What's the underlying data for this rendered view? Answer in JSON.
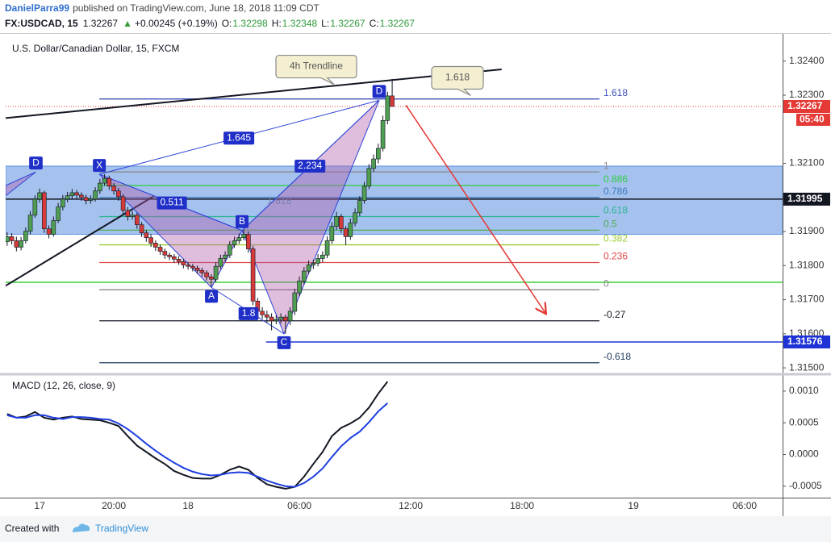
{
  "header": {
    "author": "DanielParra99",
    "published": "published on TradingView.com, June 18, 2018 11:09 CDT"
  },
  "quote": {
    "symbol": "FX:USDCAD, 15",
    "last": "1.32267",
    "change": "+0.00245 (+0.19%)",
    "fields": [
      {
        "label": "O:",
        "value": "1.32298"
      },
      {
        "label": "H:",
        "value": "1.32348"
      },
      {
        "label": "L:",
        "value": "1.32267"
      },
      {
        "label": "C:",
        "value": "1.32267"
      }
    ]
  },
  "chart_data": [
    {
      "type": "candlestick",
      "title": "U.S. Dollar/Canadian Dollar, 15, FXCM",
      "up_color": "#4f9e52",
      "down_color": "#d63a3a",
      "x": [
        -1.75,
        -1.5,
        -1.25,
        -1,
        -0.75,
        -0.5,
        -0.25,
        0,
        0.25,
        0.5,
        0.75,
        1,
        1.25,
        1.5,
        1.75,
        2,
        2.25,
        2.5,
        2.75,
        3,
        3.25,
        3.5,
        3.75,
        4,
        4.25,
        4.5,
        4.75,
        5,
        5.25,
        5.5,
        5.75,
        6,
        6.25,
        6.5,
        6.75,
        7,
        7.25,
        7.5,
        7.75,
        8,
        8.25,
        8.5,
        8.75,
        9,
        9.25,
        9.5,
        9.75,
        10,
        10.25,
        10.5,
        10.75,
        11,
        11.25,
        11.5,
        11.75,
        12,
        12.25,
        12.5,
        12.75,
        13,
        13.25,
        13.5,
        13.75,
        14,
        14.25,
        14.5,
        14.75,
        15,
        15.25,
        15.5,
        15.75,
        16,
        16.25,
        16.5,
        16.75,
        17,
        17.25,
        17.5,
        17.75,
        18,
        18.25,
        18.5,
        18.75,
        19
      ],
      "ohlc": [
        [
          1.3187,
          1.31898,
          1.31858,
          1.31885
        ],
        [
          1.31885,
          1.31895,
          1.31862,
          1.31873
        ],
        [
          1.31873,
          1.31885,
          1.31842,
          1.31854
        ],
        [
          1.31854,
          1.31884,
          1.31845,
          1.31873
        ],
        [
          1.31873,
          1.31912,
          1.31865,
          1.31901
        ],
        [
          1.31901,
          1.3196,
          1.31892,
          1.31948
        ],
        [
          1.31948,
          1.32006,
          1.3194,
          1.31995
        ],
        [
          1.31995,
          1.32026,
          1.31985,
          1.32014
        ],
        [
          1.32014,
          1.3202,
          1.31896,
          1.31908
        ],
        [
          1.31908,
          1.31918,
          1.3188,
          1.31892
        ],
        [
          1.31892,
          1.31944,
          1.31885,
          1.31932
        ],
        [
          1.31932,
          1.31984,
          1.31925,
          1.31972
        ],
        [
          1.31972,
          1.32007,
          1.31962,
          1.31995
        ],
        [
          1.31995,
          1.32016,
          1.31986,
          1.32005
        ],
        [
          1.32005,
          1.32025,
          1.31996,
          1.32014
        ],
        [
          1.32014,
          1.32022,
          1.31996,
          1.32007
        ],
        [
          1.32007,
          1.32015,
          1.3199,
          1.32
        ],
        [
          1.32,
          1.32008,
          1.3198,
          1.31991
        ],
        [
          1.31991,
          1.32006,
          1.31982,
          1.31995
        ],
        [
          1.31995,
          1.3203,
          1.31988,
          1.32019
        ],
        [
          1.32019,
          1.32054,
          1.3201,
          1.32042
        ],
        [
          1.32042,
          1.32068,
          1.32034,
          1.32056
        ],
        [
          1.32056,
          1.32064,
          1.32022,
          1.32033
        ],
        [
          1.32033,
          1.32042,
          1.32008,
          1.32019
        ],
        [
          1.32019,
          1.32028,
          1.3199,
          1.32002
        ],
        [
          1.32002,
          1.3201,
          1.3195,
          1.31962
        ],
        [
          1.31962,
          1.31972,
          1.31932,
          1.31944
        ],
        [
          1.31944,
          1.3196,
          1.31935,
          1.31948
        ],
        [
          1.31948,
          1.31955,
          1.31908,
          1.3192
        ],
        [
          1.3192,
          1.31928,
          1.31884,
          1.31896
        ],
        [
          1.31896,
          1.31905,
          1.3187,
          1.31882
        ],
        [
          1.31882,
          1.31892,
          1.31855,
          1.31866
        ],
        [
          1.31866,
          1.31874,
          1.31843,
          1.31854
        ],
        [
          1.31854,
          1.31862,
          1.31832,
          1.31842
        ],
        [
          1.31842,
          1.3185,
          1.3182,
          1.31831
        ],
        [
          1.31831,
          1.31838,
          1.31816,
          1.31826
        ],
        [
          1.31826,
          1.31834,
          1.31808,
          1.31819
        ],
        [
          1.31819,
          1.31828,
          1.31802,
          1.31812
        ],
        [
          1.31812,
          1.3182,
          1.31792,
          1.31802
        ],
        [
          1.31802,
          1.3181,
          1.31788,
          1.31798
        ],
        [
          1.31798,
          1.31805,
          1.31783,
          1.31793
        ],
        [
          1.31793,
          1.318,
          1.31776,
          1.31786
        ],
        [
          1.31786,
          1.31794,
          1.31768,
          1.31779
        ],
        [
          1.31779,
          1.31786,
          1.31756,
          1.31767
        ],
        [
          1.31767,
          1.31775,
          1.31738,
          1.3176
        ],
        [
          1.3176,
          1.3181,
          1.31752,
          1.31798
        ],
        [
          1.31798,
          1.31832,
          1.3179,
          1.31821
        ],
        [
          1.31821,
          1.31842,
          1.31812,
          1.31831
        ],
        [
          1.31831,
          1.31872,
          1.31822,
          1.31861
        ],
        [
          1.31861,
          1.31885,
          1.31852,
          1.31873
        ],
        [
          1.31873,
          1.31894,
          1.31864,
          1.31882
        ],
        [
          1.31882,
          1.31905,
          1.31874,
          1.31892
        ],
        [
          1.31892,
          1.319,
          1.31838,
          1.31849
        ],
        [
          1.31849,
          1.31858,
          1.31684,
          1.31696
        ],
        [
          1.31696,
          1.31705,
          1.31655,
          1.31666
        ],
        [
          1.31666,
          1.31678,
          1.31644,
          1.31656
        ],
        [
          1.31656,
          1.31668,
          1.31632,
          1.31649
        ],
        [
          1.31649,
          1.3166,
          1.3161,
          1.31638
        ],
        [
          1.31638,
          1.31655,
          1.31628,
          1.31642
        ],
        [
          1.31642,
          1.3166,
          1.3163,
          1.31649
        ],
        [
          1.31649,
          1.31656,
          1.316,
          1.31638
        ],
        [
          1.31638,
          1.31678,
          1.31626,
          1.31666
        ],
        [
          1.31666,
          1.31732,
          1.31655,
          1.3172
        ],
        [
          1.3172,
          1.31768,
          1.3171,
          1.31755
        ],
        [
          1.31755,
          1.31796,
          1.31745,
          1.31784
        ],
        [
          1.31784,
          1.31815,
          1.31775,
          1.31802
        ],
        [
          1.31802,
          1.31818,
          1.3179,
          1.31807
        ],
        [
          1.31807,
          1.31834,
          1.31798,
          1.31821
        ],
        [
          1.31821,
          1.31842,
          1.3181,
          1.31831
        ],
        [
          1.31831,
          1.31886,
          1.31822,
          1.31873
        ],
        [
          1.31873,
          1.31928,
          1.31864,
          1.31915
        ],
        [
          1.31915,
          1.31958,
          1.31905,
          1.31944
        ],
        [
          1.31944,
          1.31952,
          1.31896,
          1.31908
        ],
        [
          1.31908,
          1.31916,
          1.3186,
          1.31885
        ],
        [
          1.31885,
          1.31938,
          1.31876,
          1.31925
        ],
        [
          1.31925,
          1.31968,
          1.31915,
          1.31955
        ],
        [
          1.31955,
          1.32004,
          1.31945,
          1.31991
        ],
        [
          1.31991,
          1.32046,
          1.31982,
          1.32033
        ],
        [
          1.32033,
          1.32098,
          1.32024,
          1.32085
        ],
        [
          1.32085,
          1.32126,
          1.32075,
          1.32113
        ],
        [
          1.32113,
          1.32158,
          1.321,
          1.32144
        ],
        [
          1.32144,
          1.3224,
          1.32135,
          1.32226
        ],
        [
          1.32226,
          1.3231,
          1.32215,
          1.32298
        ],
        [
          1.32298,
          1.32348,
          1.32267,
          1.32267
        ]
      ],
      "xlim": [
        -1.83,
        40.04
      ],
      "xticks": [
        {
          "value": 0,
          "label": "17"
        },
        {
          "value": 4,
          "label": "20:00"
        },
        {
          "value": 8,
          "label": "18"
        },
        {
          "value": 14,
          "label": "06:00"
        },
        {
          "value": 20,
          "label": "12:00"
        },
        {
          "value": 26,
          "label": "18:00"
        },
        {
          "value": 32,
          "label": "19"
        },
        {
          "value": 38,
          "label": "06:00"
        }
      ],
      "ylim": [
        1.31486,
        1.3248
      ],
      "yticks": [
        {
          "value": 1.315,
          "label": "1.31500"
        },
        {
          "value": 1.316,
          "label": "1.31600"
        },
        {
          "value": 1.317,
          "label": "1.31700"
        },
        {
          "value": 1.318,
          "label": "1.31800"
        },
        {
          "value": 1.319,
          "label": "1.31900"
        },
        {
          "value": 1.321,
          "label": "1.32100"
        },
        {
          "value": 1.323,
          "label": "1.32300"
        },
        {
          "value": 1.324,
          "label": "1.32400"
        }
      ],
      "zone": {
        "low": 1.31892,
        "high": 1.32092,
        "color": "#5b8fe0"
      },
      "hlines": [
        {
          "value": 1.31751,
          "color": "#3ad13a"
        }
      ],
      "price_markers": [
        {
          "value": 1.32267,
          "color": "#e53935",
          "style": "dotted",
          "timer": "05:40"
        },
        {
          "value": 1.31995,
          "color": "#131722",
          "style": "solid"
        },
        {
          "value": 1.31576,
          "color": "#1e33d6",
          "style": "solid",
          "x_from": 12.2
        }
      ],
      "fib": {
        "x": [
          3.22,
          30.17
        ],
        "levels": [
          {
            "label": "1.618",
            "value": 1.32289,
            "color": "#3f4fb8"
          },
          {
            "label": "1",
            "value": 1.32075,
            "color": "#888888"
          },
          {
            "label": "0.886",
            "value": 1.32035,
            "color": "#2ecc40"
          },
          {
            "label": "0.786",
            "value": 1.32,
            "color": "#3d7ab8"
          },
          {
            "label": "0.618",
            "value": 1.31944,
            "color": "#2bb58f"
          },
          {
            "label": "0.5",
            "value": 1.31904,
            "color": "#4caf50"
          },
          {
            "label": "0.382",
            "value": 1.31861,
            "color": "#9acd32"
          },
          {
            "label": "0.236",
            "value": 1.31809,
            "color": "#e04848"
          },
          {
            "label": "0",
            "value": 1.31729,
            "color": "#888888"
          },
          {
            "label": "-0.27",
            "value": 1.31638,
            "color": "#131722"
          },
          {
            "label": "-0.618",
            "value": 1.31515,
            "color": "#1f3a5f"
          }
        ]
      },
      "trendlines": [
        {
          "x": [
            -1.83,
            24.9
          ],
          "y": [
            1.32233,
            1.32376
          ],
          "color": "#131722"
        },
        {
          "x": [
            -1.83,
            6.13
          ],
          "y": [
            1.31741,
            1.32003
          ],
          "color": "#131722"
        }
      ],
      "prior_pattern": {
        "points": [
          {
            "label": null,
            "x": -1.83,
            "y": 1.32035
          },
          {
            "label": "D",
            "x": -0.2,
            "y": 1.32075
          },
          {
            "label": null,
            "x": -1.83,
            "y": 1.32005
          }
        ]
      },
      "pattern": {
        "points": [
          {
            "label": "X",
            "x": 3.22,
            "y": 1.32068
          },
          {
            "label": "A",
            "x": 9.26,
            "y": 1.31736
          },
          {
            "label": "B",
            "x": 10.91,
            "y": 1.31903
          },
          {
            "label": "C",
            "x": 13.17,
            "y": 1.316
          },
          {
            "label": "D",
            "x": 18.3,
            "y": 1.32285
          }
        ],
        "ratios": [
          {
            "label": "0.511",
            "x": 7.13,
            "y": 1.31984
          },
          {
            "label": "1.645",
            "x": 10.74,
            "y": 1.32174
          },
          {
            "label": "2.234",
            "x": 14.57,
            "y": 1.32092
          },
          {
            "label": "1.8",
            "x": 11.26,
            "y": 1.31659
          }
        ],
        "plain_labels": [
          {
            "label": "1.618",
            "x": 12.91,
            "y": 1.31988
          }
        ]
      },
      "callouts": [
        {
          "label": "4h Trendline",
          "x": 14.91,
          "y": 1.32384
        },
        {
          "label": "1.618",
          "x": 22.52,
          "y": 1.32351
        }
      ],
      "arrow": {
        "x": [
          19.74,
          27.26
        ],
        "y": [
          1.32271,
          1.31661
        ],
        "color": "#e53935"
      }
    },
    {
      "type": "line",
      "title": "MACD (12, 26, close, 9)",
      "x": [
        -1.75,
        -1.25,
        -0.75,
        -0.25,
        0.25,
        0.75,
        1.25,
        1.75,
        2.25,
        2.75,
        3.25,
        3.75,
        4.25,
        4.75,
        5.25,
        5.75,
        6.25,
        6.75,
        7.25,
        7.75,
        8.25,
        8.75,
        9.25,
        9.75,
        10.25,
        10.75,
        11.25,
        11.75,
        12.25,
        12.75,
        13.25,
        13.75,
        14.25,
        14.75,
        15.25,
        15.75,
        16.25,
        16.75,
        17.25,
        17.75,
        18.25,
        18.75
      ],
      "series": [
        {
          "color": "#131722",
          "values": [
            0.00064,
            0.00058,
            0.0006,
            0.00067,
            0.00058,
            0.00055,
            0.00058,
            0.0006,
            0.00056,
            0.00055,
            0.00054,
            0.0005,
            0.00045,
            0.00029,
            0.00014,
            4e-05,
            -6e-05,
            -0.00015,
            -0.00026,
            -0.00032,
            -0.00037,
            -0.00038,
            -0.00038,
            -0.00032,
            -0.00024,
            -0.00019,
            -0.00024,
            -0.00037,
            -0.00047,
            -0.00051,
            -0.00054,
            -0.00051,
            -0.00035,
            -0.00015,
            4e-05,
            0.00029,
            0.00042,
            0.00049,
            0.00058,
            0.00074,
            0.00096,
            0.00115
          ]
        },
        {
          "color": "#1f3ee0",
          "values": [
            0.00062,
            0.00058,
            0.00058,
            0.00062,
            0.00062,
            0.00058,
            0.00056,
            0.00059,
            0.00059,
            0.00058,
            0.00056,
            0.00055,
            0.00049,
            0.0004,
            0.00029,
            0.00017,
            6e-05,
            -4e-05,
            -0.00013,
            -0.00021,
            -0.00027,
            -0.00031,
            -0.00033,
            -0.00032,
            -0.00029,
            -0.00028,
            -0.00029,
            -0.00035,
            -0.00041,
            -0.00046,
            -0.0005,
            -0.00051,
            -0.00045,
            -0.00035,
            -0.00022,
            -4e-05,
            0.00013,
            0.00026,
            0.00036,
            0.00051,
            0.00068,
            0.00081
          ]
        }
      ],
      "xlim": [
        -1.83,
        40.04
      ],
      "ylim": [
        -0.00068,
        0.00124
      ],
      "yticks": [
        {
          "value": -0.0005,
          "label": "-0.0005"
        },
        {
          "value": 0,
          "label": "0.0000"
        },
        {
          "value": 0.0005,
          "label": "0.0005"
        },
        {
          "value": 0.001,
          "label": "0.0010"
        }
      ]
    }
  ],
  "footer": {
    "created": "Created with",
    "brand": "TradingView"
  }
}
